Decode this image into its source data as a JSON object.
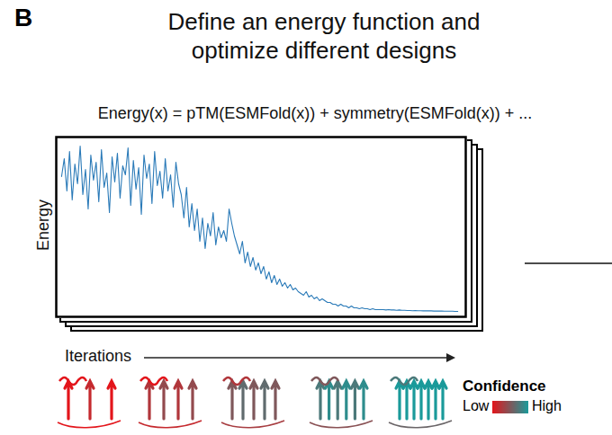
{
  "chart_data": {
    "type": "line",
    "panel_label": "B",
    "title": "Define an energy function and optimize different designs",
    "subtitle": "Energy(x) = pTM(ESMFold(x)) + symmetry(ESMFold(x)) + ...",
    "x_label": "Iterations",
    "y_label": "Energy",
    "color": "#2a7ab8",
    "xlim": [
      -2,
      152
    ],
    "ylim": [
      0,
      100
    ],
    "xticks": [],
    "yticks": [],
    "tick_labels": false,
    "legend": "bottom right",
    "legend_title": "Confidence",
    "legend_labels": [
      "Low",
      "High"
    ],
    "values": [
      78,
      88,
      70,
      92,
      65,
      85,
      74,
      95,
      68,
      82,
      60,
      90,
      76,
      86,
      64,
      93,
      72,
      80,
      58,
      89,
      75,
      91,
      66,
      84,
      79,
      94,
      62,
      87,
      71,
      83,
      57,
      90,
      77,
      85,
      63,
      92,
      73,
      81,
      66,
      88,
      70,
      79,
      61,
      86,
      74,
      68,
      55,
      72,
      50,
      63,
      48,
      60,
      42,
      55,
      38,
      52,
      45,
      58,
      40,
      50,
      44,
      48,
      42,
      60,
      52,
      45,
      40,
      35,
      42,
      30,
      36,
      28,
      33,
      26,
      30,
      24,
      28,
      21,
      25,
      19,
      23,
      18,
      21,
      17,
      19,
      16,
      18,
      15,
      16,
      14,
      13,
      12,
      14,
      11,
      12,
      10,
      11,
      9,
      10,
      9,
      8,
      8,
      7,
      7,
      6,
      7,
      6,
      6,
      5,
      6,
      5,
      5,
      4.5,
      5,
      4.5,
      4.5,
      4,
      4.5,
      4,
      4,
      4,
      4,
      3.8,
      4,
      3.8,
      3.8,
      3.6,
      3.8,
      3.6,
      3.6,
      3.5,
      3.5,
      3.4,
      3.5,
      3.4,
      3.4,
      3.3,
      3.4,
      3.3,
      3.3,
      3.2,
      3.2,
      3.2,
      3.2,
      3.1,
      3.1,
      3.1,
      3.1,
      3,
      3
    ]
  }
}
